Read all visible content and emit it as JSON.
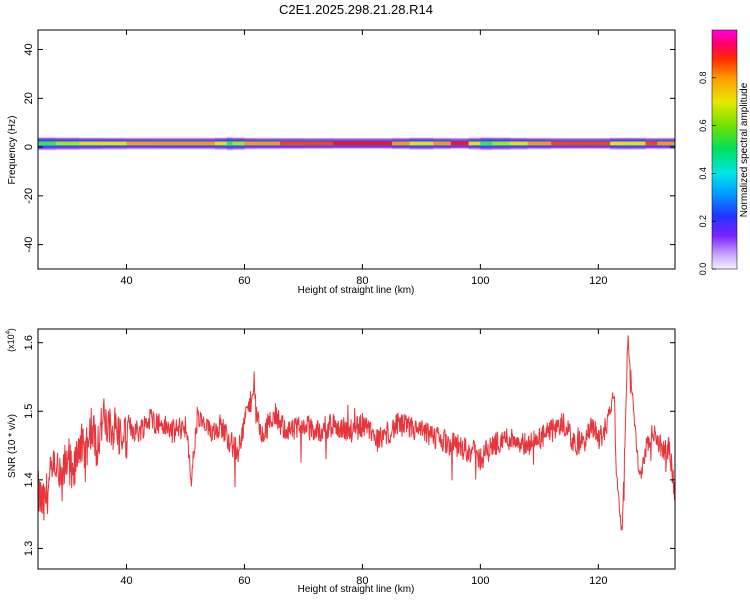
{
  "figure": {
    "title": "C2E1.2025.298.21.28.R14"
  },
  "chart_data": [
    {
      "type": "heatmap",
      "title": "C2E1.2025.298.21.28.R14",
      "xlabel": "Height of straight line (km)",
      "ylabel": "Frequency (Hz)",
      "xlim": [
        25,
        133
      ],
      "ylim": [
        -50,
        48
      ],
      "x_ticks": [
        40,
        60,
        80,
        100,
        120
      ],
      "y_ticks": [
        40,
        20,
        0,
        -20,
        -40
      ],
      "x_tick_labels": [
        "40",
        "60",
        "80",
        "100",
        "120"
      ],
      "y_tick_labels": [
        "40",
        "20",
        "0",
        "-20",
        "-40"
      ],
      "band_center_hz": 1.5,
      "intensity_profile": {
        "x": [
          25,
          28,
          32,
          36,
          40,
          45,
          50,
          55,
          57,
          58,
          60,
          62,
          66,
          70,
          75,
          80,
          85,
          88,
          90,
          92,
          95,
          98,
          100,
          102,
          105,
          108,
          112,
          118,
          122,
          124,
          125,
          126,
          128,
          130,
          133
        ],
        "amplitude": [
          0.55,
          0.6,
          0.7,
          0.75,
          0.8,
          0.85,
          0.82,
          0.85,
          0.6,
          0.5,
          0.8,
          0.85,
          0.88,
          0.9,
          0.95,
          0.98,
          0.95,
          0.75,
          0.7,
          0.75,
          0.95,
          0.95,
          0.6,
          0.6,
          0.7,
          0.8,
          0.9,
          0.95,
          0.9,
          0.6,
          0.85,
          0.6,
          0.9,
          0.88,
          0.85
        ]
      },
      "colorbar": {
        "label": "Normalized spectral amplitude",
        "ticks": [
          0.0,
          0.2,
          0.4,
          0.6,
          0.8
        ],
        "tick_labels": [
          "0.0",
          "0.2",
          "0.4",
          "0.6",
          "0.8"
        ],
        "range": [
          0,
          1
        ]
      },
      "grid": false
    },
    {
      "type": "line",
      "xlabel": "Height of straight line (km)",
      "ylabel": "SNR (10 * v/v)",
      "y_multiplier": "(x10",
      "y_multiplier_exp": "4",
      "y_multiplier_close": ")",
      "xlim": [
        25,
        133
      ],
      "ylim": [
        1.27,
        1.62
      ],
      "x_ticks": [
        40,
        60,
        80,
        100,
        120
      ],
      "y_ticks": [
        1.3,
        1.4,
        1.5,
        1.6
      ],
      "x_tick_labels": [
        "40",
        "60",
        "80",
        "100",
        "120"
      ],
      "y_tick_labels": [
        "1.3",
        "1.4",
        "1.5",
        "1.6"
      ],
      "series_color": "#e8343a",
      "series": [
        {
          "x": [
            25,
            26,
            27,
            28,
            29,
            30,
            31,
            32,
            33,
            34,
            35,
            36,
            37,
            38,
            39,
            40,
            42,
            44,
            46,
            48,
            50,
            51,
            52,
            54,
            56,
            58,
            59,
            60,
            61,
            61.7,
            62,
            63,
            64,
            65,
            66,
            68,
            70,
            72,
            75,
            78,
            80,
            83,
            86,
            90,
            93,
            96,
            99,
            100,
            101,
            102,
            104,
            106,
            108,
            110,
            112,
            114,
            115,
            116,
            118,
            119,
            120,
            121,
            122,
            122.7,
            123,
            124,
            124.5,
            125,
            126,
            127,
            128,
            129,
            130,
            131,
            132,
            133
          ],
          "y": [
            1.38,
            1.36,
            1.4,
            1.42,
            1.39,
            1.44,
            1.4,
            1.46,
            1.43,
            1.48,
            1.45,
            1.49,
            1.47,
            1.48,
            1.46,
            1.48,
            1.47,
            1.49,
            1.48,
            1.47,
            1.48,
            1.4,
            1.49,
            1.47,
            1.48,
            1.45,
            1.44,
            1.49,
            1.51,
            1.55,
            1.5,
            1.46,
            1.48,
            1.5,
            1.48,
            1.47,
            1.48,
            1.47,
            1.48,
            1.47,
            1.48,
            1.46,
            1.48,
            1.47,
            1.46,
            1.45,
            1.44,
            1.43,
            1.44,
            1.45,
            1.46,
            1.46,
            1.45,
            1.46,
            1.47,
            1.48,
            1.47,
            1.45,
            1.46,
            1.48,
            1.46,
            1.47,
            1.5,
            1.53,
            1.42,
            1.32,
            1.45,
            1.61,
            1.5,
            1.4,
            1.44,
            1.47,
            1.46,
            1.44,
            1.45,
            1.38
          ]
        }
      ],
      "grid": false
    }
  ]
}
